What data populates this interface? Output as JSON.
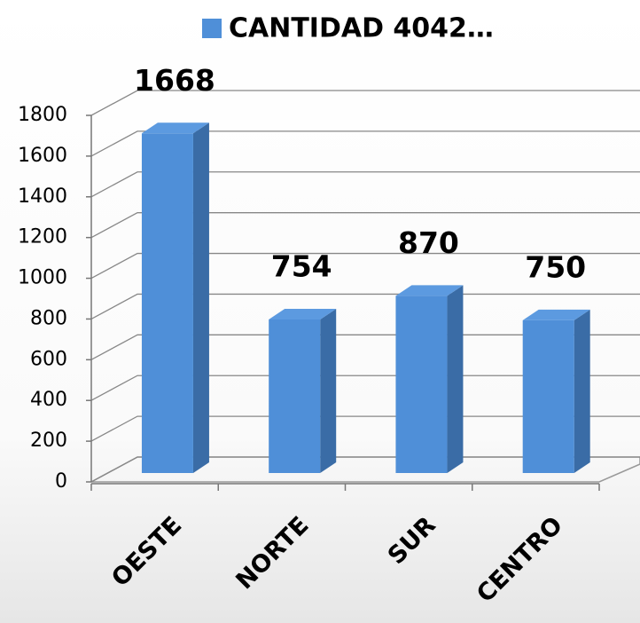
{
  "chart_data": {
    "type": "bar3d",
    "series": [
      {
        "name": "CANTIDAD 4042…",
        "color": "#4f8fd8",
        "values": [
          1668,
          754,
          870,
          750
        ]
      }
    ],
    "categories": [
      "OESTE",
      "NORTE",
      "SUR",
      "CENTRO"
    ],
    "ylim": [
      0,
      1800
    ],
    "yticks": [
      0,
      200,
      400,
      600,
      800,
      1000,
      1200,
      1400,
      1600,
      1800
    ],
    "grid": true,
    "legend": "top",
    "data_labels": true
  }
}
